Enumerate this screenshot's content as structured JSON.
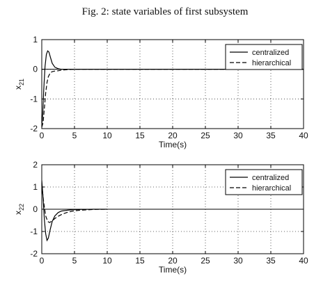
{
  "figure": {
    "title": "Fig. 2: state variables of first subsystem"
  },
  "chart_data": [
    {
      "type": "line",
      "xlabel": "Time(s)",
      "ylabel": "x",
      "ylabel_sub": "21",
      "xlim": [
        0,
        40
      ],
      "ylim": [
        -2,
        1
      ],
      "xticks": [
        "0",
        "5",
        "10",
        "15",
        "20",
        "25",
        "30",
        "35",
        "40"
      ],
      "yticks": [
        "1",
        "0",
        "-1",
        "-2"
      ],
      "grid": true,
      "legend": "top-right",
      "series": [
        {
          "name": "centralized",
          "style": "solid",
          "x": [
            0,
            0.15,
            0.3,
            0.5,
            0.7,
            0.9,
            1.1,
            1.3,
            1.6,
            2.0,
            2.5,
            3.0,
            4.0,
            5.0,
            7.0,
            10.0,
            15.0,
            20.0,
            25.0,
            30.0,
            35.0,
            40.0
          ],
          "y": [
            -1.9,
            -1.5,
            -0.7,
            0.1,
            0.5,
            0.62,
            0.58,
            0.42,
            0.2,
            0.07,
            0.02,
            0.0,
            0.0,
            0.0,
            0.0,
            0.0,
            0.0,
            0.0,
            0.0,
            0.0,
            0.0,
            0.0
          ]
        },
        {
          "name": "hierarchical",
          "style": "dashed",
          "x": [
            0,
            0.2,
            0.4,
            0.6,
            0.8,
            1.0,
            1.3,
            1.6,
            2.0,
            2.5,
            3.0,
            3.5,
            4.0,
            5.0,
            7.0,
            10.0,
            15.0,
            20.0,
            25.0,
            30.0,
            35.0,
            40.0
          ],
          "y": [
            -1.95,
            -1.8,
            -1.3,
            -0.8,
            -0.45,
            -0.25,
            -0.12,
            -0.08,
            -0.06,
            -0.05,
            -0.03,
            -0.02,
            -0.01,
            0.0,
            0.0,
            0.0,
            0.0,
            0.0,
            0.0,
            0.0,
            0.0,
            0.0
          ]
        }
      ]
    },
    {
      "type": "line",
      "xlabel": "Time(s)",
      "ylabel": "x",
      "ylabel_sub": "22",
      "xlim": [
        0,
        40
      ],
      "ylim": [
        -2,
        2
      ],
      "xticks": [
        "0",
        "5",
        "10",
        "15",
        "20",
        "25",
        "30",
        "35",
        "40"
      ],
      "yticks": [
        "2",
        "1",
        "0",
        "-1",
        "-2"
      ],
      "grid": true,
      "legend": "top-right",
      "series": [
        {
          "name": "centralized",
          "style": "solid",
          "x": [
            0,
            0.2,
            0.4,
            0.6,
            0.8,
            1.0,
            1.3,
            1.6,
            2.0,
            2.5,
            3.0,
            4.0,
            5.0,
            6.0,
            8.0,
            10.0
          ],
          "y": [
            1.3,
            0.5,
            -0.5,
            -1.1,
            -1.4,
            -1.3,
            -0.9,
            -0.55,
            -0.3,
            -0.15,
            -0.08,
            -0.04,
            -0.02,
            -0.01,
            0.0,
            0.0
          ]
        },
        {
          "name": "hierarchical",
          "style": "dashed",
          "x": [
            0,
            0.3,
            0.6,
            0.9,
            1.2,
            1.6,
            2.0,
            2.5,
            3.0,
            3.5,
            4.0,
            5.0,
            6.0,
            8.0,
            10.0
          ],
          "y": [
            1.1,
            0.3,
            -0.3,
            -0.55,
            -0.6,
            -0.52,
            -0.42,
            -0.32,
            -0.24,
            -0.18,
            -0.13,
            -0.07,
            -0.04,
            -0.01,
            0.0
          ]
        }
      ]
    }
  ]
}
